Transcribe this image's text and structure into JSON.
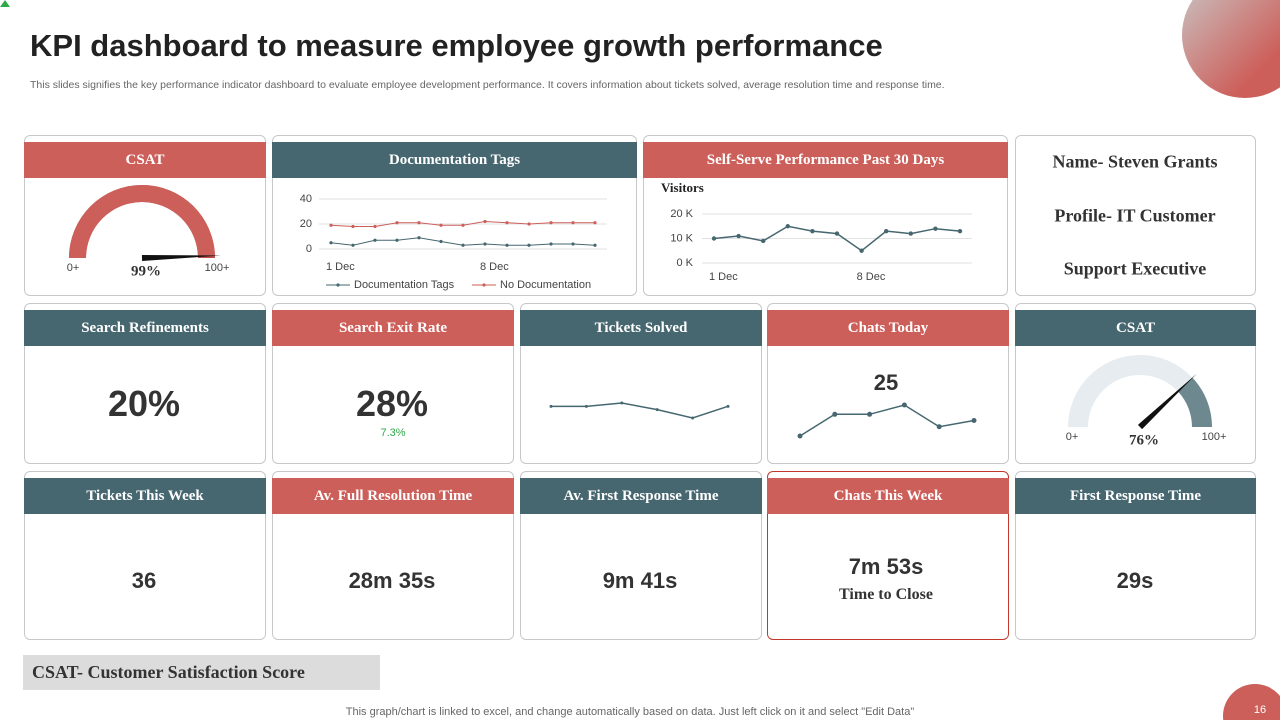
{
  "header": {
    "title": "KPI dashboard to measure employee growth performance",
    "subtitle": "This slides signifies the key performance indicator dashboard to evaluate employee development performance. It covers information about tickets solved, average resolution time and response time."
  },
  "csat_gauge": {
    "type": "gauge",
    "title": "CSAT",
    "value": 99,
    "value_label": "99%",
    "color": "#cd5f5a",
    "range": [
      {
        "value": 0,
        "label": "0+"
      },
      {
        "value": 100,
        "label": "100+"
      }
    ]
  },
  "documentation_tags": {
    "type": "line",
    "title": "Documentation Tags",
    "categories": [
      "1 Dec",
      null,
      null,
      null,
      null,
      null,
      null,
      "8 Dec",
      null,
      null,
      null,
      null,
      null
    ],
    "series": [
      {
        "name": "Documentation Tags",
        "color": "#466770",
        "values": [
          5,
          3,
          7,
          7,
          9,
          6,
          3,
          4,
          3,
          3,
          4,
          4,
          3
        ]
      },
      {
        "name": "No Documentation",
        "color": "#cd5f5a",
        "values": [
          19,
          18,
          18,
          21,
          21,
          19,
          19,
          22,
          21,
          20,
          21,
          21,
          21
        ]
      }
    ],
    "ylim": [
      0,
      40
    ],
    "yticks": [
      0,
      20,
      40
    ]
  },
  "self_serve": {
    "type": "line",
    "title": "Self-Serve Performance Past 30 Days",
    "y_label": "Visitors",
    "categories": [
      "1 Dec",
      null,
      null,
      null,
      null,
      null,
      "8 Dec",
      null,
      null,
      null,
      null
    ],
    "values": [
      10000,
      11000,
      9000,
      15000,
      13000,
      12000,
      5000,
      13000,
      12000,
      14000,
      13000
    ],
    "color": "#466770",
    "ylim": [
      0,
      20000
    ],
    "yticks": [
      {
        "value": 0,
        "label": "0 K"
      },
      {
        "value": 10000,
        "label": "10 K"
      },
      {
        "value": 20000,
        "label": "20 K"
      }
    ]
  },
  "profile": {
    "lines": [
      "Name- Steven Grants",
      "Profile- IT Customer",
      "Support Executive"
    ]
  },
  "search_refinements": {
    "title": "Search Refinements",
    "value": "20%"
  },
  "search_exit_rate": {
    "title": "Search Exit Rate",
    "value": "28%",
    "change": "7.3%"
  },
  "tickets_solved": {
    "type": "line",
    "title": "Tickets Solved",
    "values": [
      20,
      20,
      22,
      18,
      13,
      20
    ],
    "color": "#466770"
  },
  "chats_today": {
    "type": "line",
    "title": "Chats Today",
    "label": "25",
    "values": [
      15,
      22,
      22,
      25,
      18,
      20
    ],
    "color": "#466770"
  },
  "csat_gauge_2": {
    "type": "gauge",
    "title": "CSAT",
    "value": 76,
    "value_label": "76%",
    "color": "#466770",
    "range": [
      {
        "value": 0,
        "label": "0+"
      },
      {
        "value": 100,
        "label": "100+"
      }
    ]
  },
  "row3": [
    {
      "title": "Tickets This Week",
      "value": "36"
    },
    {
      "title": "Av. Full Resolution Time",
      "value": "28m 35s"
    },
    {
      "title": "Av. First Response Time",
      "value": "9m 41s"
    },
    {
      "title": "Chats This Week",
      "value": "7m 53s",
      "caption": "Time to Close"
    },
    {
      "title": "First Response Time",
      "value": "29s"
    }
  ],
  "footer": {
    "legend": "CSAT- Customer Satisfaction Score",
    "note": "This graph/chart is linked to excel, and change automatically based on data. Just left click on it and select \"Edit Data\"",
    "page": "16"
  }
}
